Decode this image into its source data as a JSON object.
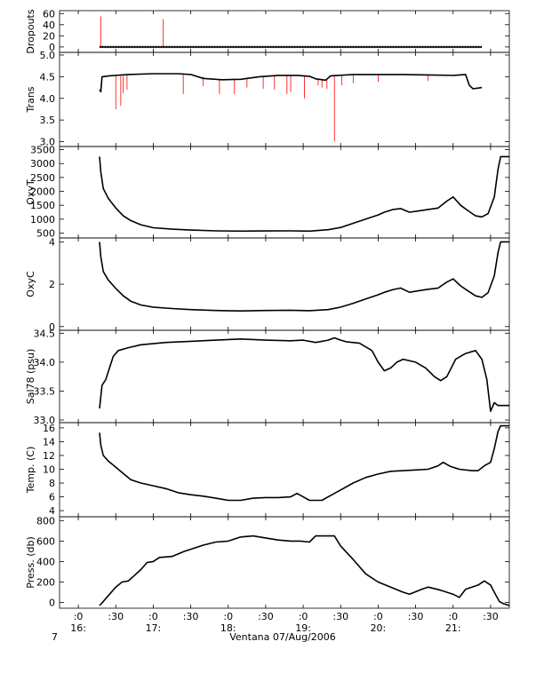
{
  "figure": {
    "xlabel": "Ventana 07/Aug/2006",
    "corner_label": "7",
    "trace_color": "#000000",
    "spike_color": "#ff0000",
    "x_ticks": [
      {
        "t": 960,
        "label": ":0",
        "hour": "16:"
      },
      {
        "t": 990,
        "label": ":30",
        "hour": ""
      },
      {
        "t": 1020,
        "label": ":0",
        "hour": "17:"
      },
      {
        "t": 1050,
        "label": ":30",
        "hour": ""
      },
      {
        "t": 1080,
        "label": ":0",
        "hour": "18:"
      },
      {
        "t": 1110,
        "label": ":30",
        "hour": ""
      },
      {
        "t": 1140,
        "label": ":0",
        "hour": "19:"
      },
      {
        "t": 1170,
        "label": ":30",
        "hour": ""
      },
      {
        "t": 1200,
        "label": ":0",
        "hour": "20:"
      },
      {
        "t": 1230,
        "label": ":30",
        "hour": ""
      },
      {
        "t": 1260,
        "label": ":0",
        "hour": "21:"
      },
      {
        "t": 1290,
        "label": ":30",
        "hour": ""
      }
    ]
  },
  "chart_data": [
    {
      "type": "line",
      "ylabel": "Dropouts",
      "ylim": [
        -5,
        62
      ],
      "yticks": [
        0,
        20,
        40,
        60
      ],
      "ytick_labels": [
        "0",
        "20",
        "40",
        "60"
      ],
      "xlim": [
        945,
        1305
      ],
      "points": [
        [
          977,
          0
        ],
        [
          1283,
          0
        ]
      ],
      "spikes": [
        [
          978,
          0,
          55
        ],
        [
          1028,
          0,
          50
        ]
      ]
    },
    {
      "type": "line",
      "ylabel": "Trans",
      "ylim": [
        2.95,
        5.02
      ],
      "yticks": [
        3.0,
        3.5,
        4.0,
        4.5,
        5.0
      ],
      "ytick_labels": [
        "3.0",
        "3.5",
        "4.0",
        "4.5",
        "5.0"
      ],
      "xlim": [
        945,
        1305
      ],
      "points": [
        [
          977,
          4.2
        ],
        [
          978,
          4.15
        ],
        [
          979,
          4.5
        ],
        [
          985,
          4.52
        ],
        [
          1000,
          4.55
        ],
        [
          1020,
          4.57
        ],
        [
          1040,
          4.57
        ],
        [
          1050,
          4.55
        ],
        [
          1060,
          4.46
        ],
        [
          1075,
          4.43
        ],
        [
          1090,
          4.44
        ],
        [
          1105,
          4.5
        ],
        [
          1120,
          4.53
        ],
        [
          1135,
          4.53
        ],
        [
          1145,
          4.51
        ],
        [
          1150,
          4.45
        ],
        [
          1158,
          4.42
        ],
        [
          1162,
          4.52
        ],
        [
          1180,
          4.55
        ],
        [
          1200,
          4.55
        ],
        [
          1220,
          4.55
        ],
        [
          1240,
          4.54
        ],
        [
          1260,
          4.53
        ],
        [
          1270,
          4.55
        ],
        [
          1273,
          4.3
        ],
        [
          1276,
          4.22
        ],
        [
          1283,
          4.25
        ]
      ],
      "spikes": [
        [
          990,
          4.52,
          3.75
        ],
        [
          994,
          4.52,
          3.83
        ],
        [
          996,
          4.52,
          4.12
        ],
        [
          999,
          4.53,
          4.2
        ],
        [
          1044,
          4.57,
          4.1
        ],
        [
          1060,
          4.5,
          4.28
        ],
        [
          1073,
          4.43,
          4.1
        ],
        [
          1085,
          4.43,
          4.1
        ],
        [
          1095,
          4.47,
          4.25
        ],
        [
          1108,
          4.5,
          4.22
        ],
        [
          1117,
          4.52,
          4.2
        ],
        [
          1127,
          4.53,
          4.1
        ],
        [
          1130,
          4.53,
          4.15
        ],
        [
          1141,
          4.52,
          4.0
        ],
        [
          1152,
          4.44,
          4.3
        ],
        [
          1155,
          4.43,
          4.25
        ],
        [
          1159,
          4.42,
          4.22
        ],
        [
          1165,
          4.52,
          3.0
        ],
        [
          1171,
          4.53,
          4.3
        ],
        [
          1180,
          4.55,
          4.35
        ],
        [
          1200,
          4.55,
          4.38
        ],
        [
          1240,
          4.54,
          4.4
        ]
      ]
    },
    {
      "type": "line",
      "ylabel": "OxyT",
      "ylim": [
        420,
        3550
      ],
      "yticks": [
        500,
        1000,
        1500,
        2000,
        2500,
        3000,
        3500
      ],
      "ytick_labels": [
        "500",
        "1000",
        "1500",
        "2000",
        "2500",
        "3000",
        "3500"
      ],
      "xlim": [
        945,
        1305
      ],
      "points": [
        [
          977,
          3250
        ],
        [
          978,
          2700
        ],
        [
          980,
          2100
        ],
        [
          984,
          1750
        ],
        [
          990,
          1400
        ],
        [
          996,
          1120
        ],
        [
          1002,
          950
        ],
        [
          1010,
          800
        ],
        [
          1020,
          690
        ],
        [
          1035,
          640
        ],
        [
          1050,
          610
        ],
        [
          1070,
          580
        ],
        [
          1090,
          570
        ],
        [
          1110,
          575
        ],
        [
          1130,
          580
        ],
        [
          1145,
          570
        ],
        [
          1160,
          620
        ],
        [
          1170,
          700
        ],
        [
          1180,
          850
        ],
        [
          1190,
          1000
        ],
        [
          1200,
          1150
        ],
        [
          1205,
          1250
        ],
        [
          1212,
          1350
        ],
        [
          1218,
          1380
        ],
        [
          1225,
          1250
        ],
        [
          1233,
          1300
        ],
        [
          1240,
          1350
        ],
        [
          1248,
          1400
        ],
        [
          1255,
          1650
        ],
        [
          1260,
          1800
        ],
        [
          1266,
          1500
        ],
        [
          1272,
          1300
        ],
        [
          1278,
          1120
        ],
        [
          1283,
          1080
        ],
        [
          1288,
          1200
        ],
        [
          1293,
          1800
        ],
        [
          1296,
          2800
        ],
        [
          1298,
          3250
        ],
        [
          1305,
          3250
        ]
      ]
    },
    {
      "type": "line",
      "ylabel": "OxyC",
      "ylim": [
        -0.05,
        4.1
      ],
      "yticks": [
        0,
        2,
        4
      ],
      "ytick_labels": [
        "0",
        "2",
        "4"
      ],
      "xlim": [
        945,
        1305
      ],
      "points": [
        [
          977,
          4.0
        ],
        [
          978,
          3.3
        ],
        [
          980,
          2.6
        ],
        [
          984,
          2.2
        ],
        [
          990,
          1.8
        ],
        [
          996,
          1.45
        ],
        [
          1002,
          1.2
        ],
        [
          1010,
          1.02
        ],
        [
          1020,
          0.92
        ],
        [
          1035,
          0.85
        ],
        [
          1050,
          0.8
        ],
        [
          1070,
          0.76
        ],
        [
          1090,
          0.74
        ],
        [
          1110,
          0.76
        ],
        [
          1130,
          0.77
        ],
        [
          1145,
          0.75
        ],
        [
          1160,
          0.8
        ],
        [
          1170,
          0.92
        ],
        [
          1180,
          1.1
        ],
        [
          1190,
          1.3
        ],
        [
          1200,
          1.5
        ],
        [
          1205,
          1.62
        ],
        [
          1212,
          1.75
        ],
        [
          1218,
          1.82
        ],
        [
          1225,
          1.62
        ],
        [
          1233,
          1.7
        ],
        [
          1240,
          1.76
        ],
        [
          1248,
          1.82
        ],
        [
          1255,
          2.1
        ],
        [
          1260,
          2.25
        ],
        [
          1266,
          1.92
        ],
        [
          1272,
          1.68
        ],
        [
          1278,
          1.45
        ],
        [
          1283,
          1.38
        ],
        [
          1288,
          1.6
        ],
        [
          1293,
          2.4
        ],
        [
          1296,
          3.5
        ],
        [
          1298,
          4.0
        ],
        [
          1305,
          4.0
        ]
      ]
    },
    {
      "type": "line",
      "ylabel": "Sal78 (psu)",
      "ylim": [
        33.0,
        34.52
      ],
      "yticks": [
        33.0,
        33.5,
        34.0,
        34.5
      ],
      "ytick_labels": [
        "33.0",
        "33.5",
        "34.0",
        "34.5"
      ],
      "xlim": [
        945,
        1305
      ],
      "points": [
        [
          977,
          33.2
        ],
        [
          979,
          33.6
        ],
        [
          982,
          33.7
        ],
        [
          985,
          33.9
        ],
        [
          988,
          34.1
        ],
        [
          992,
          34.2
        ],
        [
          1000,
          34.25
        ],
        [
          1010,
          34.3
        ],
        [
          1030,
          34.34
        ],
        [
          1050,
          34.36
        ],
        [
          1070,
          34.38
        ],
        [
          1090,
          34.4
        ],
        [
          1110,
          34.38
        ],
        [
          1130,
          34.37
        ],
        [
          1140,
          34.38
        ],
        [
          1150,
          34.34
        ],
        [
          1160,
          34.38
        ],
        [
          1165,
          34.42
        ],
        [
          1170,
          34.38
        ],
        [
          1175,
          34.35
        ],
        [
          1185,
          34.33
        ],
        [
          1195,
          34.2
        ],
        [
          1200,
          34.0
        ],
        [
          1205,
          33.85
        ],
        [
          1210,
          33.9
        ],
        [
          1215,
          34.0
        ],
        [
          1220,
          34.05
        ],
        [
          1230,
          34.0
        ],
        [
          1238,
          33.9
        ],
        [
          1245,
          33.75
        ],
        [
          1250,
          33.68
        ],
        [
          1255,
          33.75
        ],
        [
          1262,
          34.05
        ],
        [
          1270,
          34.15
        ],
        [
          1278,
          34.2
        ],
        [
          1283,
          34.05
        ],
        [
          1287,
          33.7
        ],
        [
          1290,
          33.15
        ],
        [
          1293,
          33.3
        ],
        [
          1296,
          33.25
        ],
        [
          1305,
          33.25
        ]
      ]
    },
    {
      "type": "line",
      "ylabel": "Temp. (C)",
      "ylim": [
        3.5,
        16.5
      ],
      "yticks": [
        4,
        6,
        8,
        10,
        12,
        14,
        16
      ],
      "ytick_labels": [
        "4",
        "6",
        "8",
        "10",
        "12",
        "14",
        "16"
      ],
      "xlim": [
        945,
        1305
      ],
      "points": [
        [
          977,
          15.3
        ],
        [
          978,
          13.5
        ],
        [
          980,
          12.0
        ],
        [
          984,
          11.2
        ],
        [
          990,
          10.3
        ],
        [
          996,
          9.4
        ],
        [
          1002,
          8.5
        ],
        [
          1010,
          8.0
        ],
        [
          1020,
          7.6
        ],
        [
          1030,
          7.2
        ],
        [
          1040,
          6.6
        ],
        [
          1050,
          6.3
        ],
        [
          1060,
          6.1
        ],
        [
          1070,
          5.8
        ],
        [
          1080,
          5.5
        ],
        [
          1090,
          5.5
        ],
        [
          1100,
          5.8
        ],
        [
          1110,
          5.9
        ],
        [
          1120,
          5.9
        ],
        [
          1130,
          6.0
        ],
        [
          1135,
          6.5
        ],
        [
          1140,
          6.0
        ],
        [
          1145,
          5.5
        ],
        [
          1155,
          5.5
        ],
        [
          1160,
          6.0
        ],
        [
          1170,
          7.0
        ],
        [
          1180,
          8.0
        ],
        [
          1190,
          8.8
        ],
        [
          1200,
          9.3
        ],
        [
          1210,
          9.7
        ],
        [
          1220,
          9.8
        ],
        [
          1230,
          9.9
        ],
        [
          1240,
          10.0
        ],
        [
          1248,
          10.5
        ],
        [
          1252,
          11.0
        ],
        [
          1258,
          10.4
        ],
        [
          1265,
          10.0
        ],
        [
          1275,
          9.8
        ],
        [
          1280,
          9.8
        ],
        [
          1285,
          10.5
        ],
        [
          1290,
          11.0
        ],
        [
          1293,
          13.0
        ],
        [
          1296,
          15.5
        ],
        [
          1298,
          16.3
        ],
        [
          1305,
          16.3
        ]
      ]
    },
    {
      "type": "line",
      "ylabel": "Press. (db)",
      "ylim": [
        -30,
        820
      ],
      "yticks": [
        0,
        200,
        400,
        600,
        800
      ],
      "ytick_labels": [
        "0",
        "200",
        "400",
        "600",
        "800"
      ],
      "xlim": [
        945,
        1305
      ],
      "points": [
        [
          977,
          -30
        ],
        [
          980,
          10
        ],
        [
          985,
          80
        ],
        [
          990,
          150
        ],
        [
          995,
          200
        ],
        [
          1000,
          210
        ],
        [
          1010,
          320
        ],
        [
          1015,
          390
        ],
        [
          1020,
          400
        ],
        [
          1025,
          440
        ],
        [
          1035,
          450
        ],
        [
          1045,
          500
        ],
        [
          1050,
          520
        ],
        [
          1060,
          560
        ],
        [
          1070,
          590
        ],
        [
          1080,
          600
        ],
        [
          1090,
          640
        ],
        [
          1100,
          650
        ],
        [
          1110,
          630
        ],
        [
          1120,
          610
        ],
        [
          1130,
          600
        ],
        [
          1138,
          600
        ],
        [
          1145,
          590
        ],
        [
          1150,
          650
        ],
        [
          1160,
          650
        ],
        [
          1165,
          650
        ],
        [
          1170,
          550
        ],
        [
          1180,
          420
        ],
        [
          1190,
          280
        ],
        [
          1200,
          200
        ],
        [
          1210,
          150
        ],
        [
          1220,
          100
        ],
        [
          1225,
          80
        ],
        [
          1235,
          130
        ],
        [
          1240,
          150
        ],
        [
          1250,
          120
        ],
        [
          1260,
          80
        ],
        [
          1265,
          50
        ],
        [
          1270,
          130
        ],
        [
          1280,
          170
        ],
        [
          1285,
          210
        ],
        [
          1290,
          170
        ],
        [
          1293,
          100
        ],
        [
          1297,
          10
        ],
        [
          1300,
          -10
        ],
        [
          1305,
          -30
        ]
      ]
    }
  ]
}
